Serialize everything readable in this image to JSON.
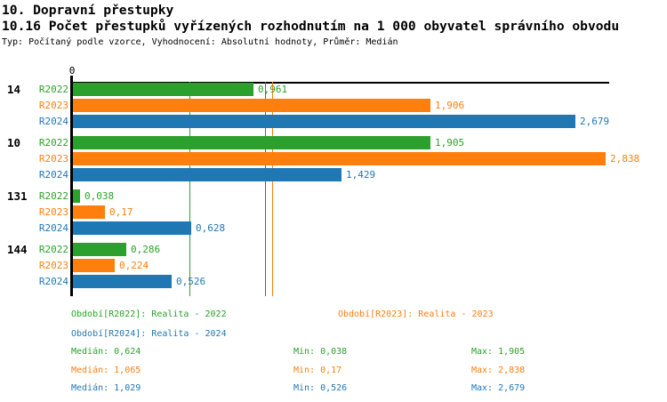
{
  "header": {
    "line1": "10. Dopravní přestupky",
    "line2": "10.16 Počet přestupků vyřízených rozhodnutím na 1 000 obyvatel správního obvodu",
    "line3": "Typ: Počítaný podle vzorce, Vyhodnocení: Absolutní hodnoty, Průměr: Medián"
  },
  "chart_data": {
    "type": "bar",
    "orientation": "horizontal",
    "title": "10.16 Počet přestupků vyřízených rozhodnutím na 1 000 obyvatel správního obvodu",
    "xlabel": "",
    "ylabel": "",
    "xlim": [
      0,
      2.85
    ],
    "grid": false,
    "x_axis": {
      "origin_label": "0"
    },
    "groups": [
      "14",
      "10",
      "131",
      "144"
    ],
    "series": [
      {
        "name": "R2022",
        "color": "#2ca02c",
        "values": [
          0.961,
          1.905,
          0.038,
          0.286
        ],
        "value_labels": [
          "0,961",
          "1,905",
          "0,038",
          "0,286"
        ],
        "median": 0.624,
        "legend": "Období[R2022]: Realita - 2022",
        "stats": {
          "median_label": "Medián: 0,624",
          "min_label": "Min: 0,038",
          "max_label": "Max: 1,905"
        }
      },
      {
        "name": "R2023",
        "color": "#ff7f0e",
        "values": [
          1.906,
          2.838,
          0.17,
          0.224
        ],
        "value_labels": [
          "1,906",
          "2,838",
          "0,17",
          "0,224"
        ],
        "median": 1.065,
        "legend": "Období[R2023]: Realita - 2023",
        "stats": {
          "median_label": "Medián: 1,065",
          "min_label": "Min: 0,17",
          "max_label": "Max: 2,838"
        }
      },
      {
        "name": "R2024",
        "color": "#1f77b4",
        "values": [
          2.679,
          1.429,
          0.628,
          0.526
        ],
        "value_labels": [
          "2,679",
          "1,429",
          "0,628",
          "0,526"
        ],
        "median": 1.029,
        "legend": "Období[R2024]: Realita - 2024",
        "stats": {
          "median_label": "Medián: 1,029",
          "min_label": "Min: 0,526",
          "max_label": "Max: 2,679"
        }
      }
    ],
    "legend_position": "bottom"
  }
}
